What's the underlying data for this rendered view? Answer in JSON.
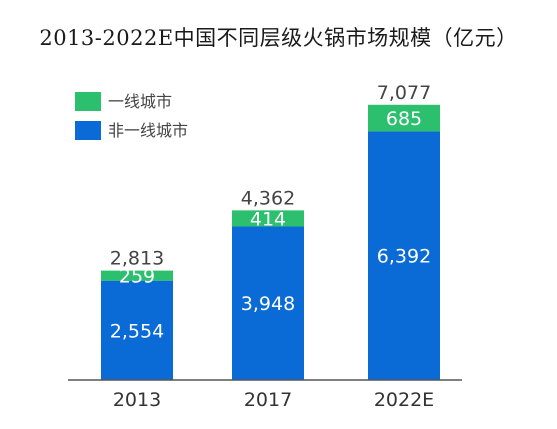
{
  "colors": {
    "tier1": "#2bbf6e",
    "non_tier1": "#0a6ad6",
    "axis": "#555555",
    "background": "#ffffff"
  },
  "chart_data": {
    "type": "bar",
    "stacked": true,
    "title": "2013-2022E中国不同层级火锅市场规模（亿元）",
    "categories": [
      "2013",
      "2017",
      "2022E"
    ],
    "series": [
      {
        "name": "非一线城市",
        "values": [
          2554,
          3948,
          6392
        ]
      },
      {
        "name": "一线城市",
        "values": [
          259,
          414,
          685
        ]
      }
    ],
    "segment_labels": {
      "non_tier1": [
        "2,554",
        "3,948",
        "6,392"
      ],
      "tier1": [
        "259",
        "414",
        "685"
      ]
    },
    "totals": [
      2813,
      4362,
      7077
    ],
    "total_labels": [
      "2,813",
      "4,362",
      "7,077"
    ],
    "ylim": [
      0,
      7200
    ],
    "grid": false,
    "legend": {
      "position": "top-left",
      "entries": [
        "一线城市",
        "非一线城市"
      ]
    }
  }
}
